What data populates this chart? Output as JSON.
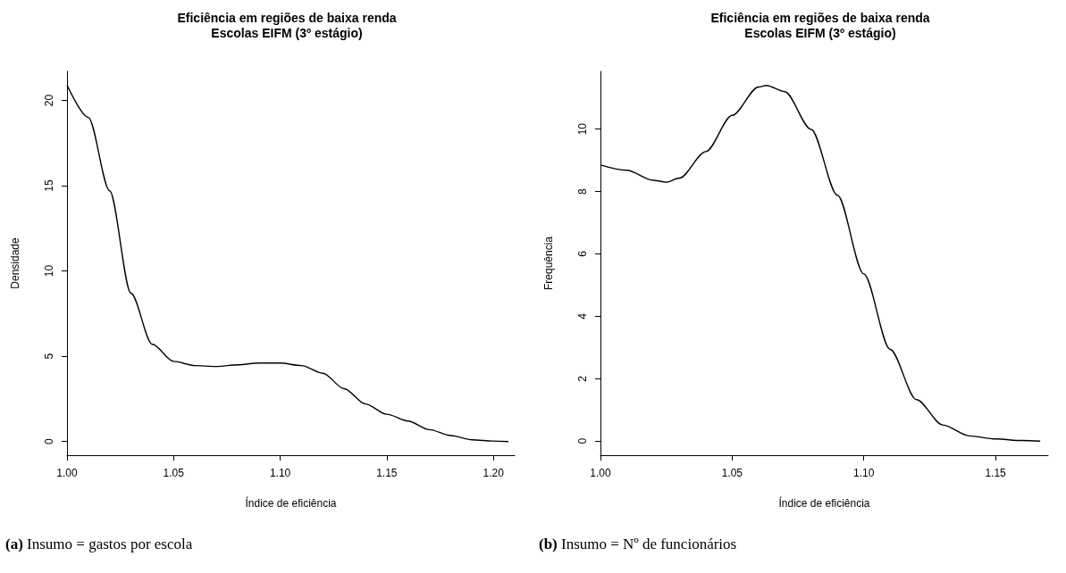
{
  "chart_data": [
    {
      "type": "line",
      "title": "Eficiência em regiões de baixa renda\nEscolas EIFM (3º estágio)",
      "xlabel": "Índice de eficiência",
      "ylabel": "Densidade",
      "marker": "none",
      "line_style": "solid",
      "x": [
        1.0,
        1.01,
        1.02,
        1.03,
        1.04,
        1.05,
        1.06,
        1.07,
        1.08,
        1.09,
        1.1,
        1.11,
        1.12,
        1.13,
        1.14,
        1.15,
        1.16,
        1.17,
        1.18,
        1.19,
        1.2,
        1.207
      ],
      "series": [
        {
          "color": "#000000",
          "values": [
            20.9,
            19.0,
            14.7,
            8.7,
            5.7,
            4.7,
            4.45,
            4.4,
            4.5,
            4.6,
            4.6,
            4.45,
            4.0,
            3.1,
            2.2,
            1.6,
            1.2,
            0.7,
            0.35,
            0.1,
            0.03,
            0.0
          ]
        }
      ],
      "xlim": [
        1.0,
        1.21
      ],
      "xticks": [
        {
          "value": 1.0,
          "label": "1.00"
        },
        {
          "value": 1.05,
          "label": "1.05"
        },
        {
          "value": 1.1,
          "label": "1.10"
        },
        {
          "value": 1.15,
          "label": "1.15"
        },
        {
          "value": 1.2,
          "label": "1.20"
        }
      ],
      "ylim": [
        -0.8,
        21.7
      ],
      "yticks": [
        0,
        5,
        10,
        15,
        20
      ],
      "annotations": [
        "(a) Insumo = gastos por escola"
      ]
    },
    {
      "type": "line",
      "title": "Eficiência em regiões de baixa renda\nEscolas EIFM (3º estágio)",
      "xlabel": "Índice de eficiência",
      "ylabel": "Frequência",
      "marker": "none",
      "line_style": "solid",
      "x": [
        1.0,
        1.01,
        1.02,
        1.025,
        1.03,
        1.04,
        1.05,
        1.06,
        1.063,
        1.07,
        1.08,
        1.09,
        1.1,
        1.11,
        1.12,
        1.13,
        1.14,
        1.15,
        1.16,
        1.167
      ],
      "series": [
        {
          "color": "#000000",
          "values": [
            8.85,
            8.68,
            8.36,
            8.3,
            8.43,
            9.28,
            10.44,
            11.35,
            11.4,
            11.2,
            9.99,
            7.88,
            5.36,
            2.94,
            1.33,
            0.52,
            0.17,
            0.07,
            0.02,
            0.0
          ]
        }
      ],
      "xlim": [
        1.0,
        1.17
      ],
      "xticks": [
        {
          "value": 1.0,
          "label": "1.00"
        },
        {
          "value": 1.05,
          "label": "1.05"
        },
        {
          "value": 1.1,
          "label": "1.10"
        },
        {
          "value": 1.15,
          "label": "1.15"
        }
      ],
      "ylim": [
        -0.45,
        11.85
      ],
      "yticks": [
        0,
        2,
        4,
        6,
        8,
        10
      ],
      "annotations": [
        "(b) Insumo = Nº de funcionários"
      ]
    }
  ]
}
